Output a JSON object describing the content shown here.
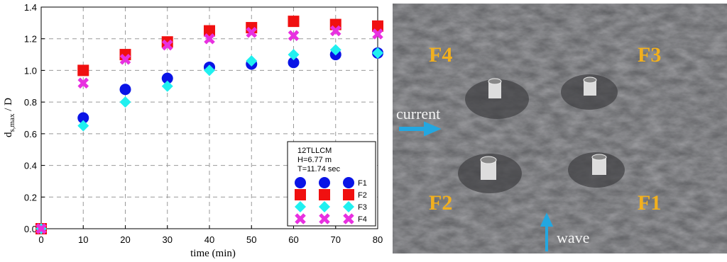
{
  "chart_data": {
    "type": "scatter",
    "xlabel": "time (min)",
    "ylabel": [
      "d",
      "s,max",
      " / D"
    ],
    "legend_title": [
      "12TLLCM",
      "H=6.77 m",
      "T=11.74 sec"
    ],
    "x": [
      0,
      10,
      20,
      30,
      40,
      50,
      60,
      70,
      80
    ],
    "series": [
      {
        "name": "F1",
        "color": "#0a14e6",
        "marker": "circle",
        "values": [
          0,
          0.7,
          0.88,
          0.95,
          1.02,
          1.04,
          1.05,
          1.1,
          1.11
        ]
      },
      {
        "name": "F2",
        "color": "#f01010",
        "marker": "square",
        "values": [
          0,
          1.0,
          1.1,
          1.18,
          1.25,
          1.27,
          1.31,
          1.29,
          1.28
        ]
      },
      {
        "name": "F3",
        "color": "#20f0f0",
        "marker": "diamond",
        "values": [
          0,
          0.65,
          0.8,
          0.9,
          1.0,
          1.06,
          1.1,
          1.13,
          1.11
        ]
      },
      {
        "name": "F4",
        "color": "#e830e0",
        "marker": "cross",
        "values": [
          0,
          0.92,
          1.07,
          1.16,
          1.2,
          1.24,
          1.22,
          1.25,
          1.23
        ]
      }
    ],
    "xlim": [
      0,
      80
    ],
    "xticks": [
      0,
      10,
      20,
      30,
      40,
      50,
      60,
      70,
      80
    ],
    "ylim": [
      0,
      1.4
    ],
    "yticks": [
      {
        "value": 0,
        "label": "0.0"
      },
      0.2,
      0.4,
      0.6,
      0.8,
      {
        "value": 1,
        "label": "1.0"
      },
      1.2,
      1.4
    ],
    "grid": true
  },
  "photo": {
    "labels": [
      "F4",
      "F3",
      "F2",
      "F1"
    ],
    "current": "current",
    "wave": "wave"
  }
}
